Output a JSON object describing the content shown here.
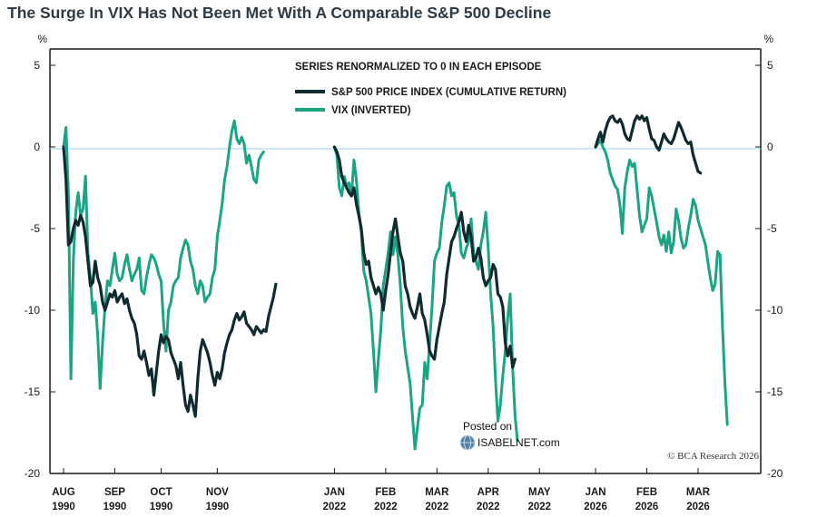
{
  "chart_data": {
    "type": "line",
    "title": "The Surge In VIX Has Not Been Met With A Comparable S&P 500 Decline",
    "ylabel_left": "%",
    "ylabel_right": "%",
    "ylim": [
      -20,
      6
    ],
    "yticks": [
      5,
      0,
      -5,
      -10,
      -15,
      -20
    ],
    "annotation": "SERIES RENORMALIZED TO 0 IN EACH EPISODE",
    "source": "© BCA Research 2026",
    "watermark": {
      "line1": "Posted on",
      "line2": "ISABELNET.com"
    },
    "x_ticks": [
      {
        "line1": "AUG",
        "line2": "1990",
        "x": 0
      },
      {
        "line1": "SEP",
        "line2": "1990",
        "x": 21
      },
      {
        "line1": "OCT",
        "line2": "1990",
        "x": 40
      },
      {
        "line1": "NOV",
        "line2": "1990",
        "x": 63
      },
      {
        "line1": "JAN",
        "line2": "2022",
        "x": 111
      },
      {
        "line1": "FEB",
        "line2": "2022",
        "x": 132
      },
      {
        "line1": "MAR",
        "line2": "2022",
        "x": 153
      },
      {
        "line1": "APR",
        "line2": "2022",
        "x": 174
      },
      {
        "line1": "MAY",
        "line2": "2022",
        "x": 195
      },
      {
        "line1": "JAN",
        "line2": "2026",
        "x": 218
      },
      {
        "line1": "FEB",
        "line2": "2026",
        "x": 239
      },
      {
        "line1": "MAR",
        "line2": "2026",
        "x": 260
      }
    ],
    "series": [
      {
        "name": "S&P 500 PRICE INDEX (CUMULATIVE RETURN)",
        "color": "#0f2b30",
        "episodes": [
          {
            "x0": 0,
            "values": [
              0,
              -2,
              -6,
              -5.8,
              -5,
              -4.5,
              -4.8,
              -4.2,
              -4.6,
              -5.5,
              -7,
              -8.5,
              -8.3,
              -7,
              -8,
              -8.5,
              -9.5,
              -10,
              -9.5,
              -9,
              -9.2,
              -8.8,
              -9.5,
              -9.2,
              -9,
              -9.6,
              -9.3,
              -10,
              -10.5,
              -10.8,
              -11.5,
              -12.8,
              -13,
              -12.5,
              -13.2,
              -14,
              -13.6,
              -15.2,
              -13.8,
              -12.5,
              -11.5,
              -12,
              -11.6,
              -11.8,
              -12.6,
              -13,
              -13.4,
              -14.2,
              -13.2,
              -14.6,
              -15.8,
              -16.2,
              -15.2,
              -15.8,
              -16.5,
              -14.2,
              -12.5,
              -11.8,
              -12.2,
              -12.6,
              -13.2,
              -14,
              -14.6,
              -13.8,
              -14.2,
              -13.6,
              -12.6,
              -12,
              -11.5,
              -11.2,
              -10.6,
              -10.2,
              -10.6,
              -10.4,
              -10.1,
              -10.8,
              -11,
              -11.2,
              -11.5,
              -11,
              -11.2,
              -11.4,
              -11.2,
              -11.3,
              -10.4,
              -9.8,
              -9.2,
              -8.4
            ]
          },
          {
            "x0": 111,
            "values": [
              0,
              -0.3,
              -0.8,
              -1.8,
              -2.2,
              -2.5,
              -2.8,
              -3,
              -2.5,
              -3.5,
              -4.2,
              -5,
              -6.5,
              -7.2,
              -7,
              -8,
              -8.5,
              -9,
              -8.6,
              -9,
              -10,
              -8.8,
              -7.8,
              -6.5,
              -5.2,
              -4.4,
              -5.5,
              -6.5,
              -7,
              -8.5,
              -9,
              -9.8,
              -10.2,
              -10.5,
              -9.8,
              -9,
              -10.2,
              -10.6,
              -11.5,
              -12.5,
              -12.8,
              -13,
              -11.8,
              -11,
              -10.2,
              -9.5,
              -7.8,
              -6.8,
              -5.8,
              -5.5,
              -5,
              -4.6,
              -4,
              -5.2,
              -5.8,
              -4.8,
              -5.5,
              -7,
              -6.8,
              -6.2,
              -6.8,
              -8,
              -8.5,
              -8.2,
              -8,
              -7.2,
              -7.5,
              -9,
              -9.2,
              -9.8,
              -12,
              -12.8,
              -12.2,
              -13.5,
              -13
            ]
          },
          {
            "x0": 218,
            "values": [
              0,
              0.5,
              0.9,
              0.3,
              1,
              1.5,
              1.8,
              1.9,
              1.6,
              1.5,
              1.7,
              1.4,
              0.8,
              0.5,
              0.4,
              1,
              1.6,
              1.9,
              1.7,
              1.9,
              1.6,
              1.8,
              1.1,
              0.5,
              0.4,
              0,
              -0.2,
              0.3,
              0.8,
              0.5,
              0.3,
              0.2,
              0.5,
              1,
              1.5,
              1.2,
              0.8,
              0.4,
              0.2,
              0.3,
              -0.5,
              -1,
              -1.5,
              -1.6
            ]
          }
        ]
      },
      {
        "name": "VIX (INVERTED)",
        "color": "#1aa483",
        "episodes": [
          {
            "x0": 0,
            "values": [
              0,
              1.2,
              -3,
              -14.2,
              -7,
              -4,
              -2.8,
              -4.2,
              -3.8,
              -1.8,
              -6.5,
              -8,
              -10.2,
              -9.5,
              -11.5,
              -14.8,
              -12,
              -9.8,
              -8.2,
              -8.5,
              -7.5,
              -6.5,
              -7.8,
              -8.2,
              -8,
              -7.2,
              -6.6,
              -7.5,
              -8.2,
              -7.8,
              -7.5,
              -6.8,
              -8.8,
              -9,
              -8,
              -7.2,
              -6.6,
              -6.8,
              -7.2,
              -7.8,
              -8.2,
              -10.8,
              -12.5,
              -10,
              -9.5,
              -8.5,
              -8.2,
              -8,
              -6.8,
              -6.2,
              -5.7,
              -6,
              -7,
              -7.5,
              -8.5,
              -9,
              -8.2,
              -8.5,
              -9.5,
              -9.2,
              -9,
              -8,
              -7.5,
              -5.5,
              -4.5,
              -3.5,
              -2,
              -1.2,
              0,
              1,
              1.6,
              0.5,
              0.2,
              0.6,
              0.2,
              -1,
              -0.5,
              -1.2,
              -2,
              -2.2,
              -0.8,
              -0.5,
              -0.3
            ]
          },
          {
            "x0": 111,
            "values": [
              0,
              -0.5,
              -2.5,
              -3,
              -1.8,
              -2.4,
              -2.2,
              -3,
              -0.8,
              -2,
              -4,
              -5.2,
              -7.6,
              -8.2,
              -9.2,
              -10.2,
              -12.5,
              -15,
              -13,
              -11.2,
              -8.5,
              -7.5,
              -6.5,
              -5.2,
              -6.6,
              -5.5,
              -6.6,
              -8.5,
              -11,
              -12.5,
              -13.5,
              -14.5,
              -16.5,
              -18.5,
              -17.2,
              -16,
              -15.8,
              -13.2,
              -14.2,
              -12,
              -9.8,
              -7,
              -6.5,
              -6.2,
              -4.6,
              -3.6,
              -2.4,
              -2.2,
              -3,
              -2.8,
              -4.2,
              -4.8,
              -6.5,
              -6.8,
              -6.2,
              -5.8,
              -4.4,
              -6.5,
              -7,
              -7.5,
              -6,
              -5.2,
              -4,
              -6.2,
              -9,
              -11,
              -14.2,
              -16.8,
              -15.8,
              -14,
              -12.5,
              -10.5,
              -9,
              -13.5,
              -16.5,
              -18
            ]
          },
          {
            "x0": 218,
            "values": [
              0,
              0.2,
              0.4,
              0,
              -0.3,
              -0.8,
              -1.6,
              -2,
              -2.4,
              -2.6,
              -3.6,
              -5.3,
              -2.5,
              -1.5,
              -0.8,
              -1.2,
              -1,
              -2.6,
              -4.2,
              -5.2,
              -4.8,
              -4.4,
              -2.5,
              -3,
              -3.8,
              -4.6,
              -5.5,
              -6,
              -5.4,
              -6.4,
              -5.2,
              -6.5,
              -5.8,
              -3.8,
              -4.5,
              -5.6,
              -6.2,
              -6,
              -5,
              -4.2,
              -3.2,
              -3.6,
              -4.5,
              -5,
              -5.5,
              -6,
              -7,
              -8,
              -8.8,
              -8.4,
              -6.4,
              -6.6,
              -11,
              -14.5,
              -17
            ]
          }
        ]
      }
    ],
    "x_total": 276
  }
}
